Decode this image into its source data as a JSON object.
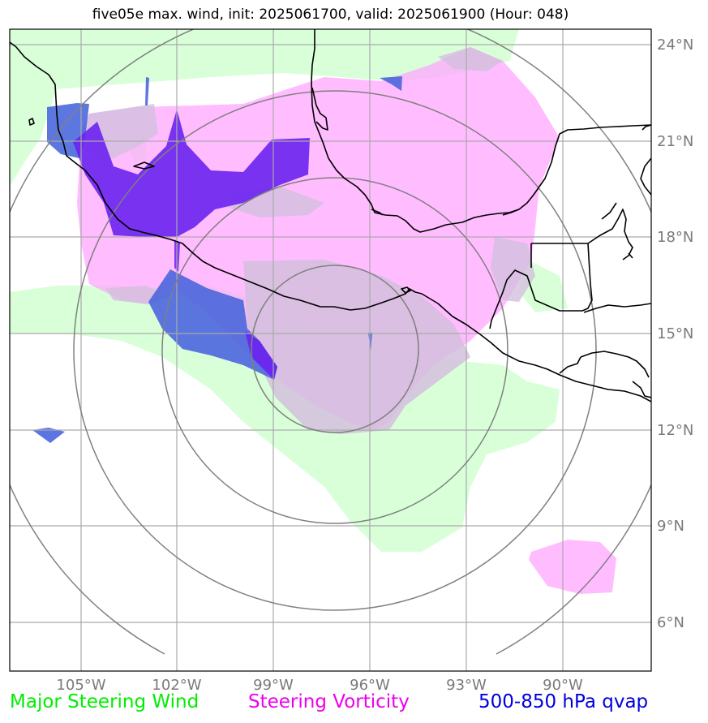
{
  "title": "five05e max. wind, init: 2025061700, valid: 2025061900 (Hour: 048)",
  "map": {
    "lon_range": [
      -107.2,
      -87.2
    ],
    "lat_range": [
      4.5,
      24.6
    ],
    "lon_ticks": [
      "105°W",
      "102°W",
      "99°W",
      "96°W",
      "93°W",
      "90°W"
    ],
    "lat_ticks": [
      "24°N",
      "21°N",
      "18°N",
      "15°N",
      "12°N",
      "9°N",
      "6°N"
    ],
    "range_rings_center": {
      "lon": -97,
      "lat": 14
    },
    "colors": {
      "steering_wind": "#ccffcc",
      "steering_vorticity": "#ffa6ff",
      "qvap": "#0000ff",
      "coastline": "#000000",
      "grid": "#aaaaaa",
      "rings": "#808080"
    }
  },
  "legend": {
    "wind_label": "Major Steering Wind",
    "wind_color": "#00ee00",
    "vorticity_label": "Steering Vorticity",
    "vorticity_color": "#ee00ee",
    "qvap_label": "500-850 hPa qvap",
    "qvap_color": "#0000dd"
  }
}
